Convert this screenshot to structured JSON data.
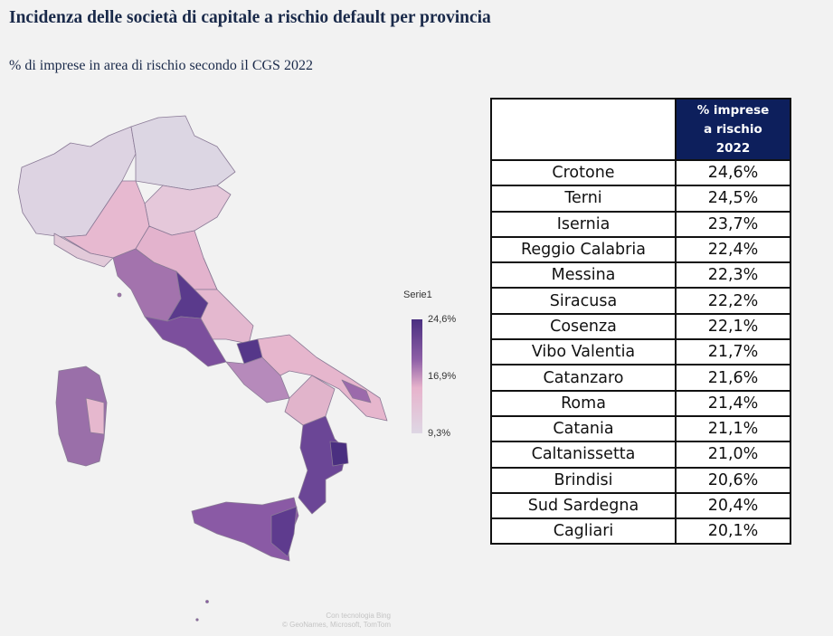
{
  "header": {
    "title": "Incidenza delle società di capitale a rischio default per provincia",
    "subtitle": "% di imprese in area di rischio secondo il CGS 2022"
  },
  "legend": {
    "title": "Serie1",
    "max_label": "24,6%",
    "mid_label": "16,9%",
    "min_label": "9,3%",
    "colors": {
      "high": "#4a2f80",
      "mid_high": "#8d5fa6",
      "mid": "#e7b3cc",
      "low": "#ded7e4"
    }
  },
  "credit": {
    "line1": "Con tecnologia Bing",
    "line2": "© GeoNames, Microsoft, TomTom"
  },
  "table": {
    "header_line1": "% imprese",
    "header_line2": "a rischio",
    "header_line3": "2022",
    "rows": [
      {
        "province": "Crotone",
        "value": "24,6%"
      },
      {
        "province": "Terni",
        "value": "24,5%"
      },
      {
        "province": "Isernia",
        "value": "23,7%"
      },
      {
        "province": "Reggio Calabria",
        "value": "22,4%"
      },
      {
        "province": "Messina",
        "value": "22,3%"
      },
      {
        "province": "Siracusa",
        "value": "22,2%"
      },
      {
        "province": "Cosenza",
        "value": "22,1%"
      },
      {
        "province": "Vibo Valentia",
        "value": "21,7%"
      },
      {
        "province": "Catanzaro",
        "value": "21,6%"
      },
      {
        "province": "Roma",
        "value": "21,4%"
      },
      {
        "province": "Catania",
        "value": "21,1%"
      },
      {
        "province": "Caltanissetta",
        "value": "21,0%"
      },
      {
        "province": "Brindisi",
        "value": "20,6%"
      },
      {
        "province": "Sud Sardegna",
        "value": "20,4%"
      },
      {
        "province": "Cagliari",
        "value": "20,1%"
      }
    ]
  }
}
